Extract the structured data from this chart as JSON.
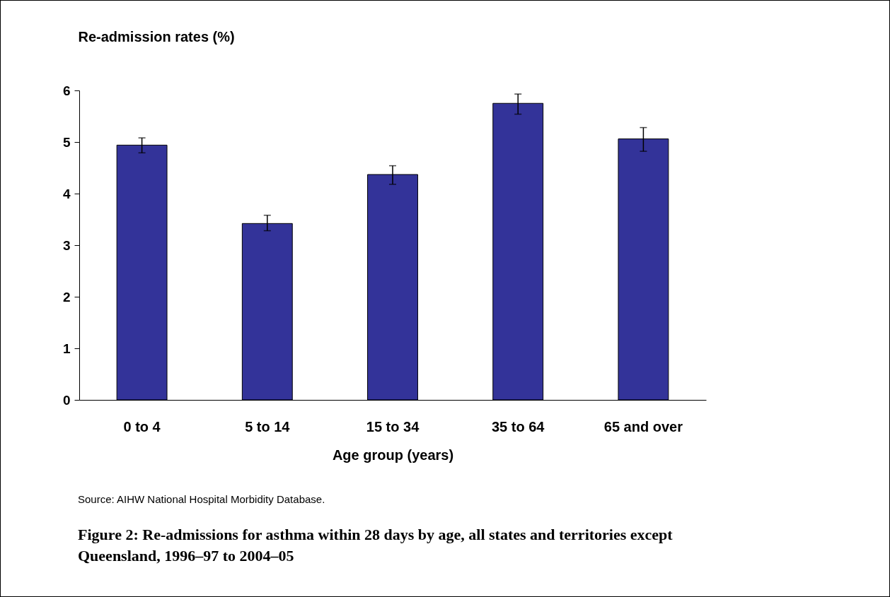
{
  "chart_data": {
    "type": "bar",
    "title": "Figure 2: Re-admissions for asthma within 28 days by age, all states and territories except Queensland, 1996–97 to 2004–05",
    "ylabel": "Re-admission rates (%)",
    "xlabel": "Age group (years)",
    "categories": [
      "0 to 4",
      "5 to 14",
      "15 to 34",
      "35 to 64",
      "65 and over"
    ],
    "values": [
      4.94,
      3.42,
      4.37,
      5.75,
      5.06
    ],
    "errors": [
      [
        4.79,
        5.08
      ],
      [
        3.28,
        3.58
      ],
      [
        4.18,
        4.54
      ],
      [
        5.54,
        5.93
      ],
      [
        4.82,
        5.28
      ]
    ],
    "color": "#333399",
    "ylim": [
      0,
      6
    ],
    "yticks": [
      0,
      1,
      2,
      3,
      4,
      5,
      6
    ],
    "grid": false,
    "annotations": [
      "Source: AIHW National Hospital Morbidity Database."
    ]
  }
}
